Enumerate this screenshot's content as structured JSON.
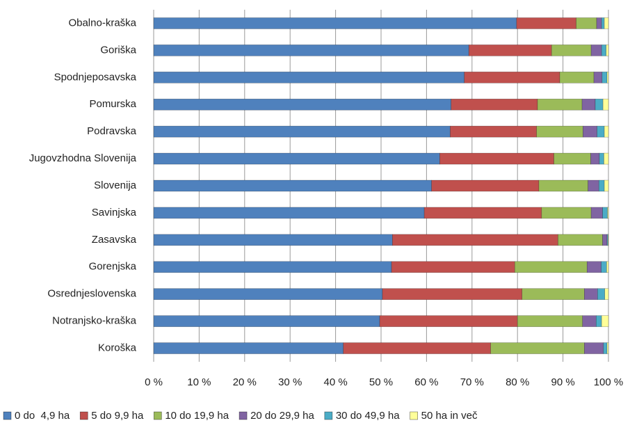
{
  "chart_data": {
    "type": "stacked-bar-horizontal",
    "categories": [
      "Obalno-kraška",
      "Goriška",
      "Spodnjeposavska",
      "Pomurska",
      "Podravska",
      "Jugovzhodna Slovenija",
      "Slovenija",
      "Savinjska",
      "Zasavska",
      "Gorenjska",
      "Osrednjeslovenska",
      "Notranjsko-kraška",
      "Koroška"
    ],
    "series": [
      {
        "name": "0 do  4,9 ha",
        "color": "#4f81bd",
        "values": [
          79.8,
          69.3,
          68.3,
          65.4,
          65.2,
          62.9,
          61.1,
          59.5,
          52.5,
          52.3,
          50.3,
          49.7,
          41.7
        ]
      },
      {
        "name": "5 do 9,9 ha",
        "color": "#c0504d",
        "values": [
          13.1,
          18.2,
          21.0,
          19.0,
          19.0,
          25.1,
          23.6,
          25.8,
          36.4,
          27.1,
          30.7,
          30.3,
          32.4
        ]
      },
      {
        "name": "10 do 19,9 ha",
        "color": "#9bbb59",
        "values": [
          4.5,
          8.7,
          7.5,
          9.8,
          10.2,
          8.1,
          10.8,
          10.9,
          9.8,
          15.9,
          13.7,
          14.3,
          20.6
        ]
      },
      {
        "name": "20 do 29,9 ha",
        "color": "#8064a2",
        "values": [
          1.1,
          2.3,
          1.8,
          2.9,
          3.1,
          1.9,
          2.4,
          2.5,
          1.0,
          3.1,
          2.9,
          3.0,
          4.2
        ]
      },
      {
        "name": "30 do 49,9 ha",
        "color": "#4bacc6",
        "values": [
          0.6,
          1.0,
          1.1,
          1.7,
          1.6,
          1.0,
          1.2,
          1.1,
          0.2,
          1.2,
          1.6,
          1.2,
          0.8
        ]
      },
      {
        "name": "50 ha in več",
        "color": "#ffff99",
        "values": [
          0.9,
          0.5,
          0.3,
          1.2,
          0.9,
          1.0,
          0.9,
          0.2,
          0.1,
          0.4,
          0.8,
          1.5,
          0.3
        ]
      }
    ],
    "xlim": [
      0,
      100
    ],
    "xticks": [
      {
        "value": 0,
        "label": "0 %"
      },
      {
        "value": 10,
        "label": "10 %"
      },
      {
        "value": 20,
        "label": "20 %"
      },
      {
        "value": 30,
        "label": "30 %"
      },
      {
        "value": 40,
        "label": "40 %"
      },
      {
        "value": 50,
        "label": "50 %"
      },
      {
        "value": 60,
        "label": "60 %"
      },
      {
        "value": 70,
        "label": "70 %"
      },
      {
        "value": 80,
        "label": "80 %"
      },
      {
        "value": 90,
        "label": "90 %"
      },
      {
        "value": 100,
        "label": "100 %"
      }
    ],
    "grid": true,
    "legend": "bottom"
  }
}
